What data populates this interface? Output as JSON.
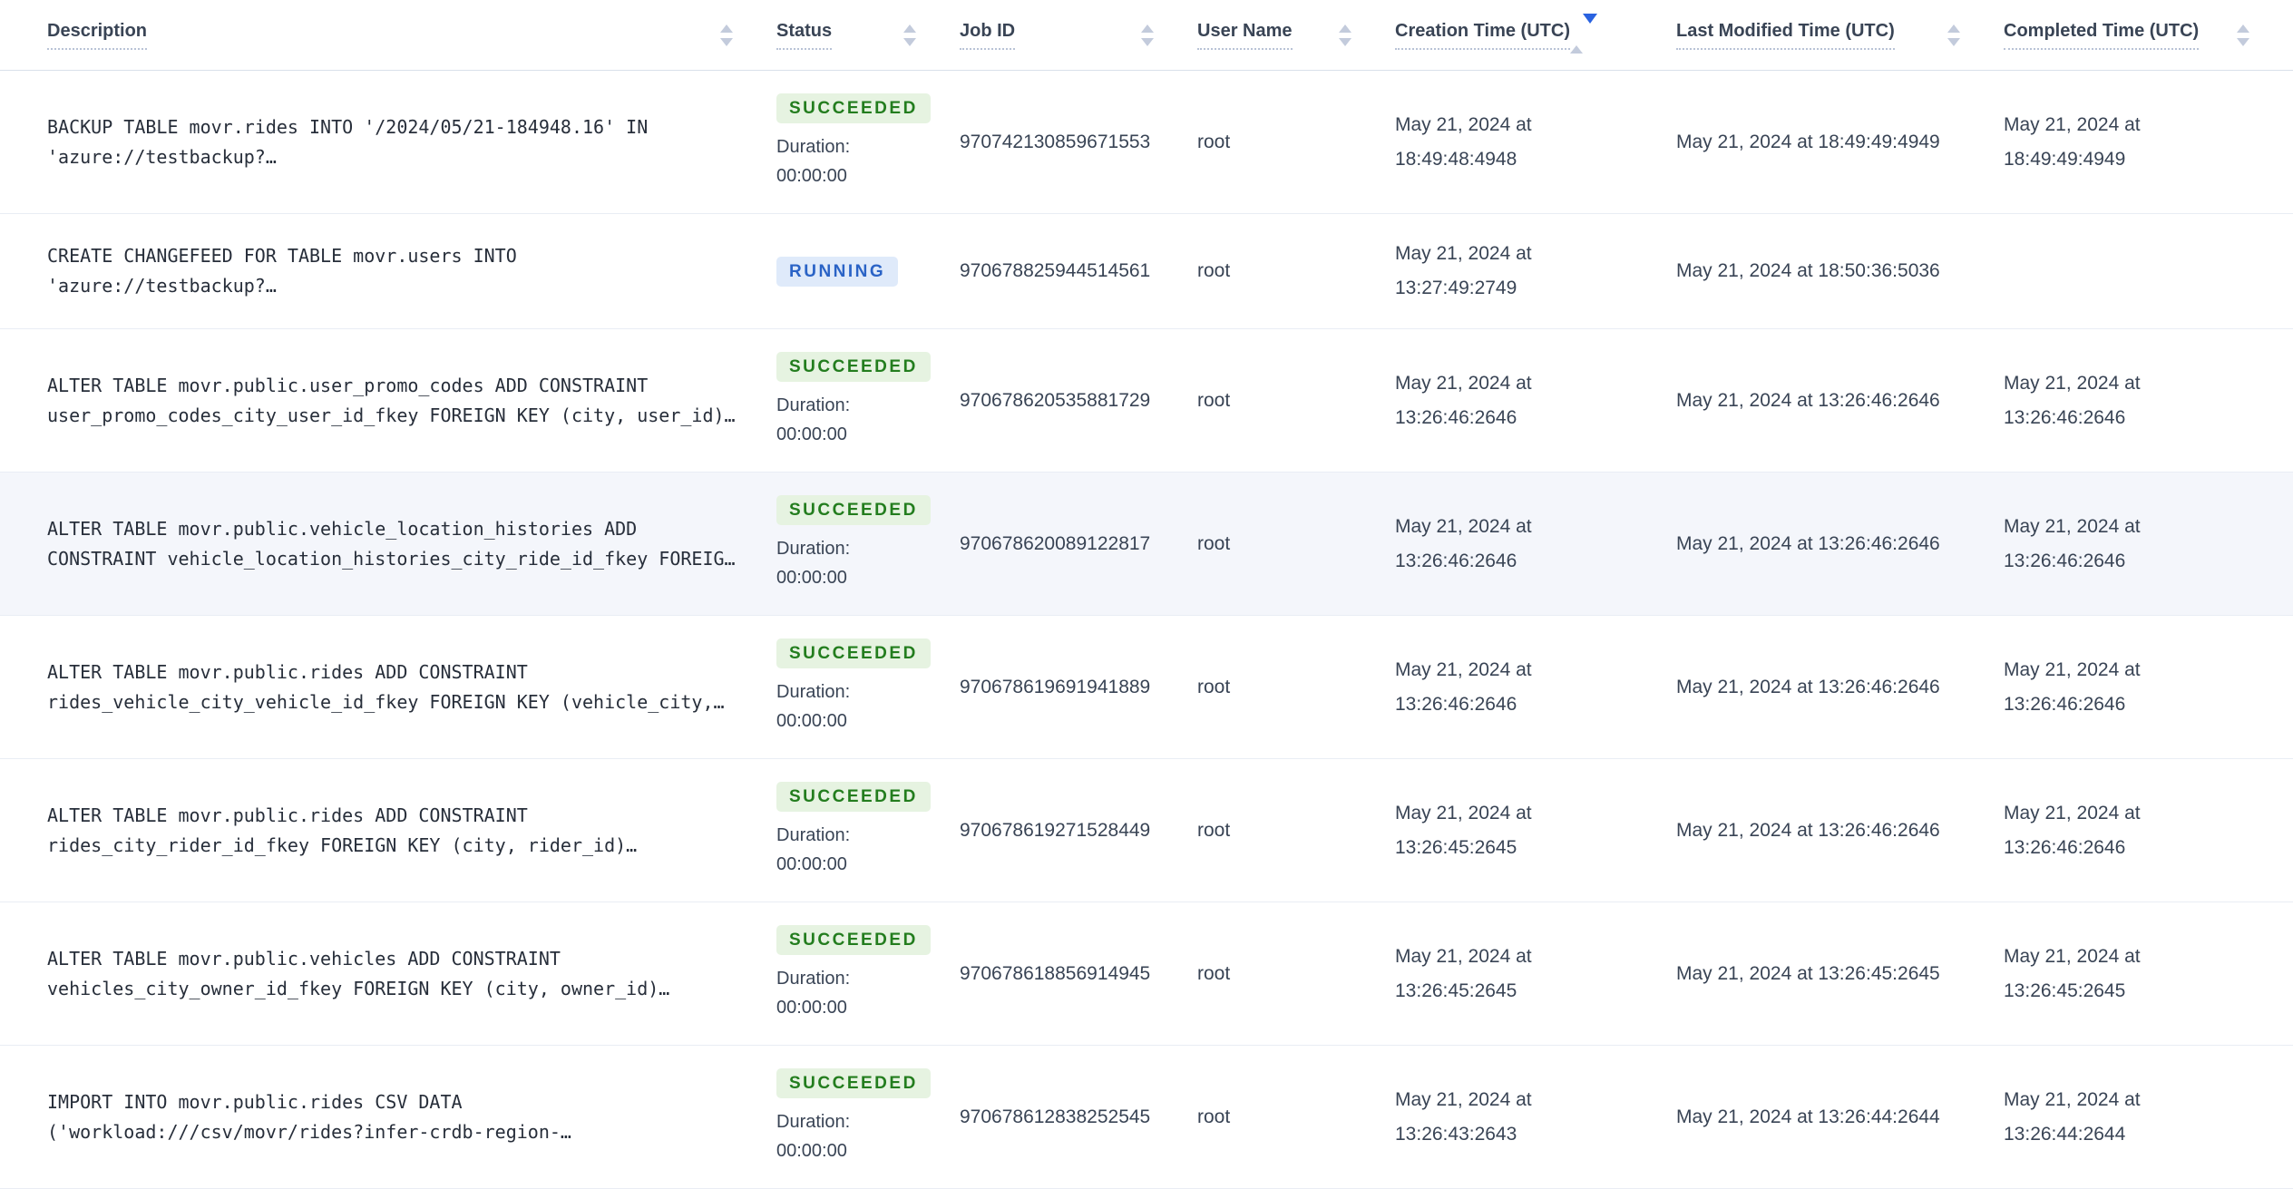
{
  "duration_label": "Duration:",
  "colors": {
    "sort_active": "#2962e0",
    "sort_inactive": "#c3cbdc",
    "row_highlight": "#f4f6fb",
    "header_text": "#394455",
    "description_text": "#272e3a"
  },
  "status_styles": {
    "SUCCEEDED": {
      "bg": "#e6f3e1",
      "color": "#237d1e"
    },
    "RUNNING": {
      "bg": "#dfeafa",
      "color": "#2a63c6"
    }
  },
  "header": {
    "columns": [
      {
        "label": "Description",
        "sort": "none"
      },
      {
        "label": "Status",
        "sort": "none"
      },
      {
        "label": "Job ID",
        "sort": "none"
      },
      {
        "label": "User Name",
        "sort": "none"
      },
      {
        "label": "Creation Time (UTC)",
        "sort": "desc"
      },
      {
        "label": "Last Modified Time (UTC)",
        "sort": "none"
      },
      {
        "label": "Completed Time (UTC)",
        "sort": "none"
      }
    ]
  },
  "rows": [
    {
      "description": "BACKUP TABLE movr.rides INTO '/2024/05/21-184948.16' IN 'azure://testbackup?…",
      "status": "SUCCEEDED",
      "duration": "00:00:00",
      "job_id": "970742130859671553",
      "user": "root",
      "created": "May 21, 2024 at 18:49:48:4948",
      "modified": "May 21, 2024 at 18:49:49:4949",
      "completed": "May 21, 2024 at 18:49:49:4949",
      "highlighted": false
    },
    {
      "description": "CREATE CHANGEFEED FOR TABLE movr.users INTO 'azure://testbackup?…",
      "status": "RUNNING",
      "duration": null,
      "job_id": "970678825944514561",
      "user": "root",
      "created": "May 21, 2024 at 13:27:49:2749",
      "modified": "May 21, 2024 at 18:50:36:5036",
      "completed": null,
      "highlighted": false
    },
    {
      "description": "ALTER TABLE movr.public.user_promo_codes ADD CONSTRAINT user_promo_codes_city_user_id_fkey FOREIGN KEY (city, user_id)…",
      "status": "SUCCEEDED",
      "duration": "00:00:00",
      "job_id": "970678620535881729",
      "user": "root",
      "created": "May 21, 2024 at 13:26:46:2646",
      "modified": "May 21, 2024 at 13:26:46:2646",
      "completed": "May 21, 2024 at 13:26:46:2646",
      "highlighted": false
    },
    {
      "description": "ALTER TABLE movr.public.vehicle_location_histories ADD CONSTRAINT vehicle_location_histories_city_ride_id_fkey FOREIG…",
      "status": "SUCCEEDED",
      "duration": "00:00:00",
      "job_id": "970678620089122817",
      "user": "root",
      "created": "May 21, 2024 at 13:26:46:2646",
      "modified": "May 21, 2024 at 13:26:46:2646",
      "completed": "May 21, 2024 at 13:26:46:2646",
      "highlighted": true
    },
    {
      "description": "ALTER TABLE movr.public.rides ADD CONSTRAINT rides_vehicle_city_vehicle_id_fkey FOREIGN KEY (vehicle_city,…",
      "status": "SUCCEEDED",
      "duration": "00:00:00",
      "job_id": "970678619691941889",
      "user": "root",
      "created": "May 21, 2024 at 13:26:46:2646",
      "modified": "May 21, 2024 at 13:26:46:2646",
      "completed": "May 21, 2024 at 13:26:46:2646",
      "highlighted": false
    },
    {
      "description": "ALTER TABLE movr.public.rides ADD CONSTRAINT rides_city_rider_id_fkey FOREIGN KEY (city, rider_id)…",
      "status": "SUCCEEDED",
      "duration": "00:00:00",
      "job_id": "970678619271528449",
      "user": "root",
      "created": "May 21, 2024 at 13:26:45:2645",
      "modified": "May 21, 2024 at 13:26:46:2646",
      "completed": "May 21, 2024 at 13:26:46:2646",
      "highlighted": false
    },
    {
      "description": "ALTER TABLE movr.public.vehicles ADD CONSTRAINT vehicles_city_owner_id_fkey FOREIGN KEY (city, owner_id)…",
      "status": "SUCCEEDED",
      "duration": "00:00:00",
      "job_id": "970678618856914945",
      "user": "root",
      "created": "May 21, 2024 at 13:26:45:2645",
      "modified": "May 21, 2024 at 13:26:45:2645",
      "completed": "May 21, 2024 at 13:26:45:2645",
      "highlighted": false
    },
    {
      "description": "IMPORT INTO movr.public.rides CSV DATA ('workload:///csv/movr/rides?infer-crdb-region-…",
      "status": "SUCCEEDED",
      "duration": "00:00:00",
      "job_id": "970678612838252545",
      "user": "root",
      "created": "May 21, 2024 at 13:26:43:2643",
      "modified": "May 21, 2024 at 13:26:44:2644",
      "completed": "May 21, 2024 at 13:26:44:2644",
      "highlighted": false
    }
  ]
}
